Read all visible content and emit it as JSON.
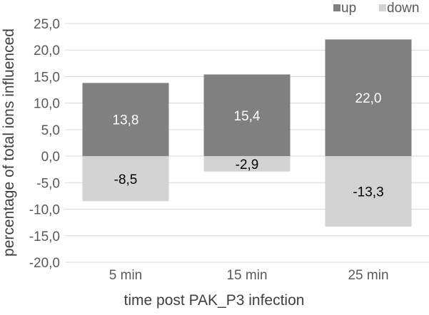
{
  "chart_data": {
    "type": "bar",
    "stacked": true,
    "categories": [
      "5 min",
      "15 min",
      "25 min"
    ],
    "series": [
      {
        "name": "up",
        "values": [
          13.8,
          15.4,
          22.0
        ],
        "color": "#808080",
        "label_color": "#ffffff"
      },
      {
        "name": "down",
        "values": [
          -8.5,
          -2.9,
          -13.3
        ],
        "color": "#d3d3d3",
        "label_color": "#000000"
      }
    ],
    "value_labels": {
      "up": [
        "13,8",
        "15,4",
        "22,0"
      ],
      "down": [
        "-8,5",
        "-2,9",
        "-13,3"
      ]
    },
    "xlabel": "time post PAK_P3 infection",
    "ylabel": "percentage of total ions influenced",
    "ylim": [
      -20,
      25
    ],
    "yticks": [
      25,
      20,
      15,
      10,
      5,
      0,
      -5,
      -10,
      -15,
      -20
    ],
    "ytick_labels": [
      "25,0",
      "20,0",
      "15,0",
      "10,0",
      "5,0",
      "0,0",
      "-5,0",
      "-10,0",
      "-15,0",
      "-20,0"
    ],
    "grid": true,
    "legend_position": "top-right",
    "gridline_color": "#d9d9d9"
  }
}
